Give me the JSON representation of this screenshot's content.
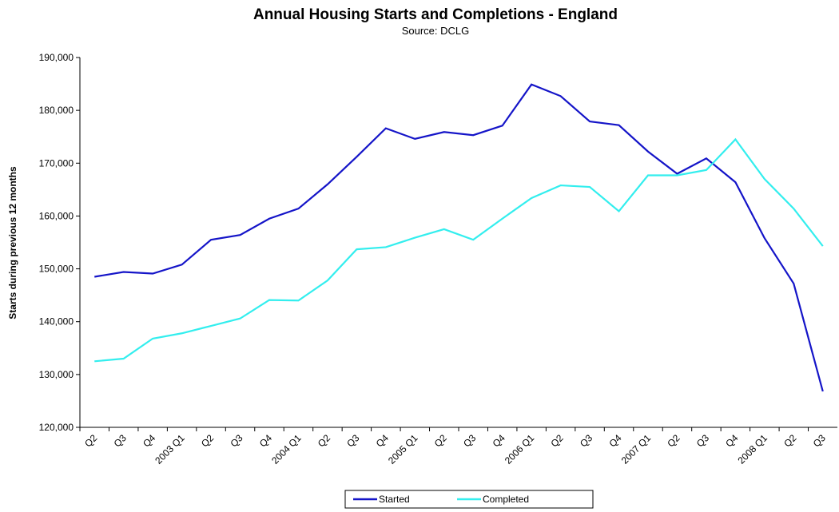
{
  "chart_data": {
    "type": "line",
    "title": "Annual Housing Starts and Completions - England",
    "subtitle": "Source: DCLG",
    "y_label": "Starts during previous 12 months",
    "categories": [
      "Q2",
      "Q3",
      "Q4",
      "2003 Q1",
      "Q2",
      "Q3",
      "Q4",
      "2004 Q1",
      "Q2",
      "Q3",
      "Q4",
      "2005 Q1",
      "Q2",
      "Q3",
      "Q4",
      "2006 Q1",
      "Q2",
      "Q3",
      "Q4",
      "2007 Q1",
      "Q2",
      "Q3",
      "Q4",
      "2008 Q1",
      "Q2",
      "Q3"
    ],
    "series": [
      {
        "name": "Started",
        "color": "#1414c8",
        "values": [
          148500,
          149400,
          149100,
          150800,
          155500,
          156400,
          159500,
          161400,
          166000,
          171200,
          176600,
          174600,
          175900,
          175300,
          177100,
          184900,
          182700,
          177900,
          177200,
          172200,
          168000,
          170900,
          166400,
          155800,
          147200,
          126800
        ]
      },
      {
        "name": "Completed",
        "color": "#33eeee",
        "values": [
          132500,
          133000,
          136800,
          137800,
          139200,
          140600,
          144100,
          144000,
          147800,
          153700,
          154100,
          155900,
          157500,
          155500,
          159500,
          163400,
          165800,
          165500,
          160900,
          167700,
          167700,
          168700,
          174500,
          167000,
          161400,
          154300
        ]
      }
    ],
    "ylim": [
      120000,
      190000
    ],
    "yticks": [
      {
        "value": 120000,
        "label": "120,000"
      },
      {
        "value": 130000,
        "label": "130,000"
      },
      {
        "value": 140000,
        "label": "140,000"
      },
      {
        "value": 150000,
        "label": "150,000"
      },
      {
        "value": 160000,
        "label": "160,000"
      },
      {
        "value": 170000,
        "label": "170,000"
      },
      {
        "value": 180000,
        "label": "180,000"
      },
      {
        "value": 190000,
        "label": "190,000"
      }
    ],
    "legend": "bottom"
  }
}
